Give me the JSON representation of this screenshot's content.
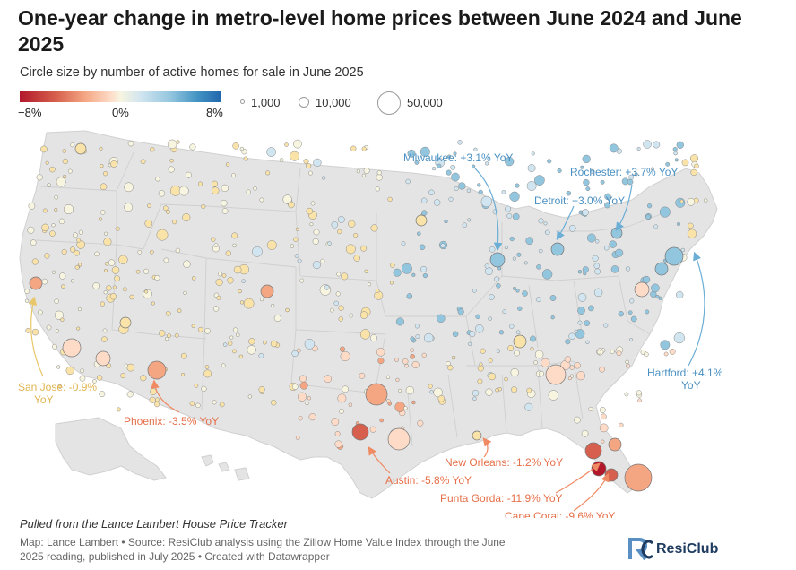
{
  "title": "One-year change in metro-level home prices between June 2024 and June 2025",
  "subtitle": "Circle size by number of active homes for sale in June 2025",
  "legend": {
    "color_min": "−8%",
    "color_mid": "0%",
    "color_max": "8%",
    "size_small": "1,000",
    "size_medium": "10,000",
    "size_large": "50,000",
    "colors": {
      "neg": "#b2182b",
      "neutral": "#f7f4e0",
      "pos": "#2166ac"
    }
  },
  "annotations": [
    {
      "id": "milwaukee",
      "label": "Milwaukee: +3.1% YoY",
      "value": 3.1
    },
    {
      "id": "rochester",
      "label": "Rochester: +3.7% YoY",
      "value": 3.7
    },
    {
      "id": "detroit",
      "label": "Detroit: +3.0% YoY",
      "value": 3.0
    },
    {
      "id": "hartford1",
      "label": "Hartford: +4.1%",
      "value": 4.1
    },
    {
      "id": "hartford2",
      "label": "YoY",
      "value": null
    },
    {
      "id": "sanjose1",
      "label": "San Jose: -0.9%",
      "value": -0.9
    },
    {
      "id": "sanjose2",
      "label": "YoY",
      "value": null
    },
    {
      "id": "phoenix",
      "label": "Phoenix: -3.5% YoY",
      "value": -3.5
    },
    {
      "id": "neworleans",
      "label": "New Orleans: -1.2% YoY",
      "value": -1.2
    },
    {
      "id": "austin",
      "label": "Austin: -5.8% YoY",
      "value": -5.8
    },
    {
      "id": "puntagorda",
      "label": "Punta Gorda: -11.9% YoY",
      "value": -11.9
    },
    {
      "id": "capecoral",
      "label": "Cape Coral: -9.6% YoY",
      "value": -9.6
    }
  ],
  "note": "Pulled from the Lance Lambert House Price Tracker",
  "footer": {
    "line1": "Map: Lance Lambert • Source: ResiClub analysis using the Zillow Home Value Index through the June",
    "line2": "2025 reading, published in July 2025 • Created with Datawrapper"
  },
  "logo": {
    "text": "ResiClub",
    "mark": "RC"
  }
}
